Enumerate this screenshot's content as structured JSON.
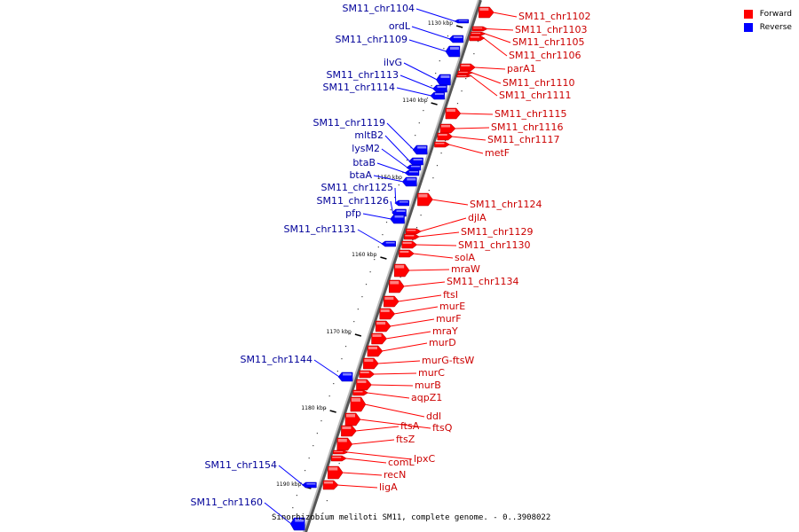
{
  "title": "Sinorhizobium meliloti SM11, complete genome. - 0..3908022",
  "legend": [
    {
      "label": "Forward",
      "color": "#ff0000"
    },
    {
      "label": "Reverse",
      "color": "#0000ff"
    }
  ],
  "colors": {
    "forward": "#ff0000",
    "reverse": "#0000ff",
    "backbone": "#808080"
  },
  "ticks": [
    "1130 kbp",
    "1140 kbp",
    "1150 kbp",
    "1160 kbp",
    "1170 kbp",
    "1180 kbp",
    "1190 kbp"
  ],
  "forward_genes": [
    "SM11_chr1102",
    "SM11_chr1103",
    "SM11_chr1105",
    "SM11_chr1106",
    "parA1",
    "SM11_chr1110",
    "SM11_chr1111",
    "SM11_chr1115",
    "SM11_chr1116",
    "SM11_chr1117",
    "metF",
    "SM11_chr1124",
    "djlA",
    "SM11_chr1129",
    "SM11_chr1130",
    "solA",
    "mraW",
    "SM11_chr1134",
    "ftsI",
    "murE",
    "murF",
    "mraY",
    "murD",
    "murG-ftsW",
    "murC",
    "murB",
    "aqpZ1",
    "ddl",
    "ftsQ",
    "ftsA",
    "ftsZ",
    "lpxC",
    "comL",
    "recN",
    "ligA"
  ],
  "reverse_genes": [
    "SM11_chr1104",
    "ordL",
    "SM11_chr1109",
    "ilvG",
    "SM11_chr1113",
    "SM11_chr1114",
    "SM11_chr1119",
    "mltB2",
    "lysM2",
    "btaB",
    "btaA",
    "SM11_chr1125",
    "SM11_chr1126",
    "pfp",
    "SM11_chr1131",
    "SM11_chr1144",
    "SM11_chr1154",
    "SM11_chr1160"
  ]
}
